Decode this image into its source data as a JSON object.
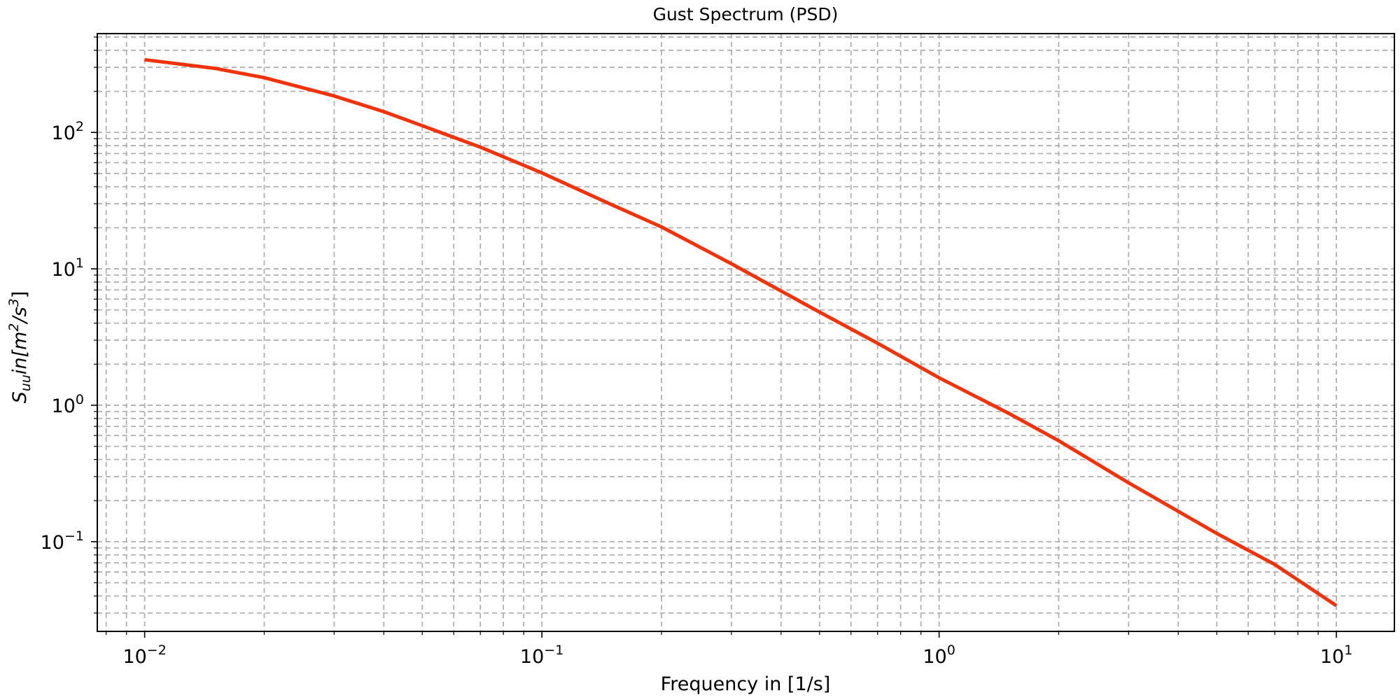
{
  "chart_data": {
    "type": "line",
    "title": "Gust Spectrum (PSD)",
    "xlabel": "Frequency in [1/s]",
    "ylabel": {
      "main": "S",
      "sub": "uu",
      "mid": "in[m",
      "sup1": "2",
      "slash": "/s",
      "sup2": "3",
      "end": "]"
    },
    "xscale": "log",
    "yscale": "log",
    "xlim": [
      0.0076,
      14.0
    ],
    "ylim": [
      0.022,
      530
    ],
    "grid": "major and minor, dashed",
    "x_ticks": [
      {
        "value": 0.01,
        "base": "10",
        "exp": "−2"
      },
      {
        "value": 0.1,
        "base": "10",
        "exp": "−1"
      },
      {
        "value": 1,
        "base": "10",
        "exp": "0"
      },
      {
        "value": 10,
        "base": "10",
        "exp": "1"
      }
    ],
    "y_ticks": [
      {
        "value": 0.1,
        "base": "10",
        "exp": "−1"
      },
      {
        "value": 1,
        "base": "10",
        "exp": "0"
      },
      {
        "value": 10,
        "base": "10",
        "exp": "1"
      },
      {
        "value": 100,
        "base": "10",
        "exp": "2"
      }
    ],
    "series": [
      {
        "color": "#f0330a",
        "x": [
          0.01,
          0.015,
          0.02,
          0.03,
          0.04,
          0.05,
          0.07,
          0.1,
          0.15,
          0.2,
          0.3,
          0.5,
          0.7,
          1.0,
          1.5,
          2.0,
          3.0,
          5.0,
          7.0,
          10.0
        ],
        "y": [
          341,
          295,
          252,
          185,
          142,
          112,
          78,
          50.5,
          29.5,
          20.3,
          10.9,
          4.82,
          2.85,
          1.59,
          0.87,
          0.55,
          0.27,
          0.115,
          0.068,
          0.034
        ]
      }
    ]
  }
}
